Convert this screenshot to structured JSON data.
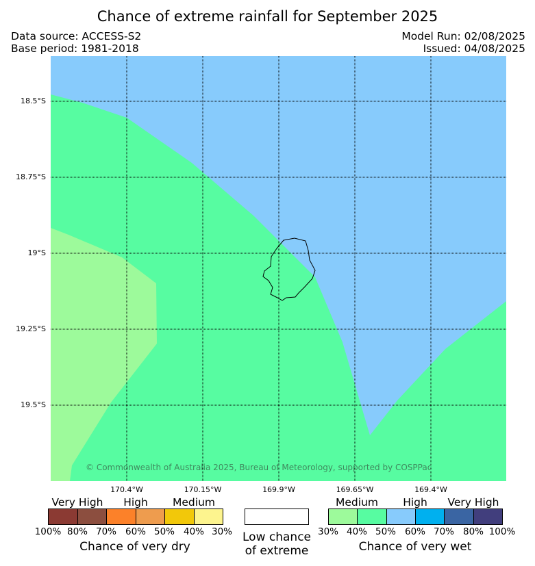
{
  "title": "Chance of extreme rainfall for September 2025",
  "meta": {
    "data_source": "Data source: ACCESS-S2",
    "base_period": "Base period: 1981-2018",
    "model_run": "Model Run: 02/08/2025",
    "issued": "Issued: 04/08/2025"
  },
  "map": {
    "lat_labels": [
      "18.5°S",
      "18.75°S",
      "19°S",
      "19.25°S",
      "19.5°S"
    ],
    "lon_labels": [
      "170.4°W",
      "170.15°W",
      "169.9°W",
      "169.65°W",
      "169.4°W"
    ],
    "copyright": "© Commonwealth of Australia 2025, Bureau of Meteorology, supported by COSPPac",
    "region_colors": {
      "high_wet": "#87cbfc",
      "medium_wet": "#57fca1",
      "low_wet": "#9dfa9b"
    }
  },
  "legend": {
    "dry": {
      "categories": [
        "Very High",
        "High",
        "Medium"
      ],
      "colors": [
        "#8b3a33",
        "#8c4e3f",
        "#fc8129",
        "#ee9c4e",
        "#f2c80a",
        "#fdf48e"
      ],
      "ticks": [
        "100%",
        "80%",
        "70%",
        "60%",
        "50%",
        "40%",
        "30%"
      ],
      "caption": "Chance of very dry"
    },
    "low": {
      "color": "#ffffff",
      "caption_line1": "Low chance",
      "caption_line2": "of extreme"
    },
    "wet": {
      "categories": [
        "Medium",
        "High",
        "Very High"
      ],
      "colors": [
        "#9dfa9b",
        "#57fca1",
        "#87cbfc",
        "#00b0ef",
        "#3a65a3",
        "#413e7d"
      ],
      "ticks": [
        "30%",
        "40%",
        "50%",
        "60%",
        "70%",
        "80%",
        "100%"
      ],
      "caption": "Chance of very wet"
    }
  }
}
